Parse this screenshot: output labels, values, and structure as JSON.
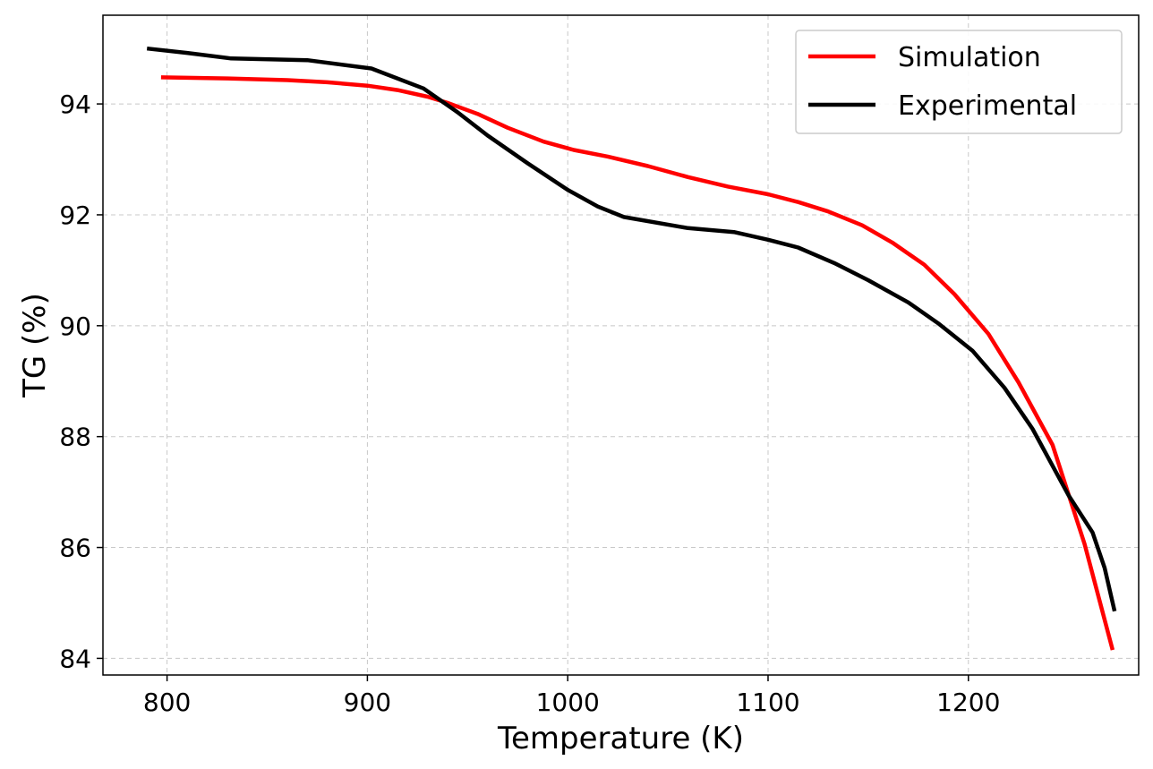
{
  "chart_data": {
    "type": "line",
    "title": "",
    "xlabel": "Temperature (K)",
    "ylabel": "TG (%)",
    "xlim": [
      768,
      1285
    ],
    "ylim": [
      83.7,
      95.6
    ],
    "xticks": [
      800,
      900,
      1000,
      1100,
      1200
    ],
    "yticks": [
      84,
      86,
      88,
      90,
      92,
      94
    ],
    "grid": true,
    "legend_position": "top-right",
    "series": [
      {
        "name": "Simulation",
        "color": "#ff0000",
        "x": [
          797,
          830,
          860,
          880,
          900,
          915,
          930,
          940,
          955,
          970,
          988,
          1003,
          1020,
          1040,
          1060,
          1080,
          1100,
          1115,
          1130,
          1147,
          1162,
          1178,
          1193,
          1210,
          1225,
          1242,
          1258,
          1272
        ],
        "y": [
          94.48,
          94.46,
          94.43,
          94.39,
          94.33,
          94.25,
          94.13,
          94.02,
          93.82,
          93.57,
          93.32,
          93.17,
          93.05,
          92.88,
          92.68,
          92.51,
          92.37,
          92.23,
          92.06,
          91.81,
          91.5,
          91.1,
          90.57,
          89.85,
          88.98,
          87.85,
          86.06,
          84.15
        ]
      },
      {
        "name": "Experimental",
        "color": "#000000",
        "x": [
          790,
          810,
          832,
          870,
          902,
          928,
          945,
          960,
          980,
          1000,
          1015,
          1028,
          1060,
          1083,
          1100,
          1115,
          1133,
          1150,
          1170,
          1185,
          1202,
          1218,
          1232,
          1250,
          1262,
          1268,
          1273
        ],
        "y": [
          95.0,
          94.92,
          94.82,
          94.79,
          94.64,
          94.28,
          93.85,
          93.43,
          92.93,
          92.45,
          92.15,
          91.96,
          91.76,
          91.69,
          91.55,
          91.41,
          91.13,
          90.82,
          90.42,
          90.04,
          89.55,
          88.88,
          88.14,
          86.94,
          86.27,
          85.63,
          84.85
        ]
      }
    ]
  }
}
